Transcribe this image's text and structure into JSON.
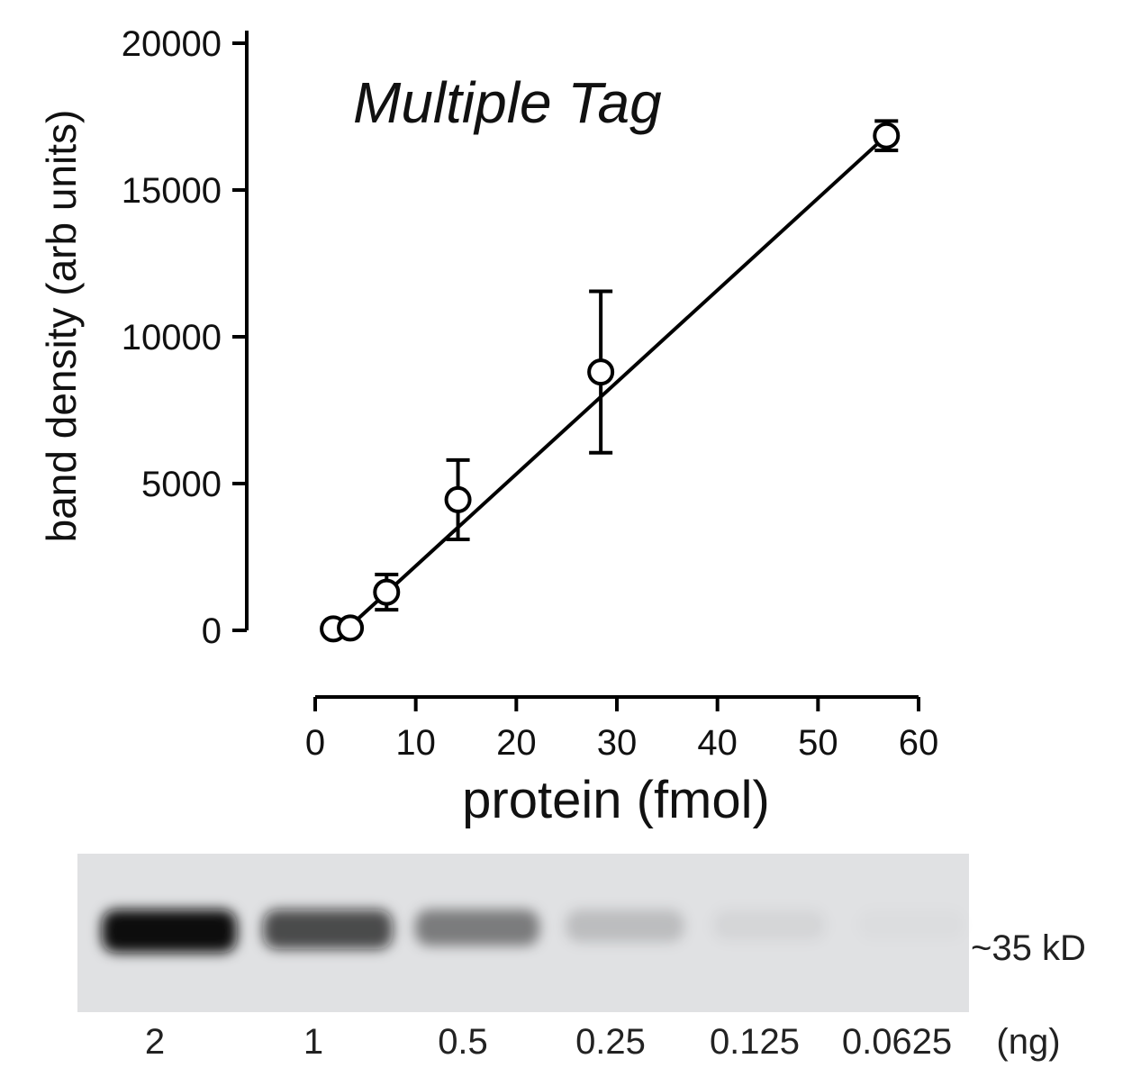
{
  "chart_data": {
    "type": "scatter",
    "title": "Multiple Tag",
    "xlabel": "protein (fmol)",
    "ylabel": "band density (arb units)",
    "xlim": [
      0,
      60
    ],
    "ylim": [
      0,
      20000
    ],
    "x_ticks": [
      "0",
      "10",
      "20",
      "30",
      "40",
      "50",
      "60"
    ],
    "y_ticks": [
      "0",
      "5000",
      "10000",
      "15000",
      "20000"
    ],
    "grid": false,
    "points": [
      {
        "x": 1.8,
        "y": 50,
        "err": 0
      },
      {
        "x": 3.5,
        "y": 80,
        "err": 0
      },
      {
        "x": 7.1,
        "y": 1300,
        "err": 600
      },
      {
        "x": 14.2,
        "y": 4450,
        "err": 1350
      },
      {
        "x": 28.4,
        "y": 8800,
        "err": 2750
      },
      {
        "x": 56.8,
        "y": 16850,
        "err": 500
      }
    ],
    "fit_line": {
      "x": [
        3,
        56.8
      ],
      "y": [
        0,
        16850
      ]
    }
  },
  "blot": {
    "marker_label": "~35 kD",
    "unit_label": "(ng)",
    "lanes": [
      {
        "label": "2",
        "intensity": 1.0
      },
      {
        "label": "1",
        "intensity": 0.72
      },
      {
        "label": "0.5",
        "intensity": 0.45
      },
      {
        "label": "0.25",
        "intensity": 0.16
      },
      {
        "label": "0.125",
        "intensity": 0.05
      },
      {
        "label": "0.0625",
        "intensity": 0.015
      }
    ]
  }
}
